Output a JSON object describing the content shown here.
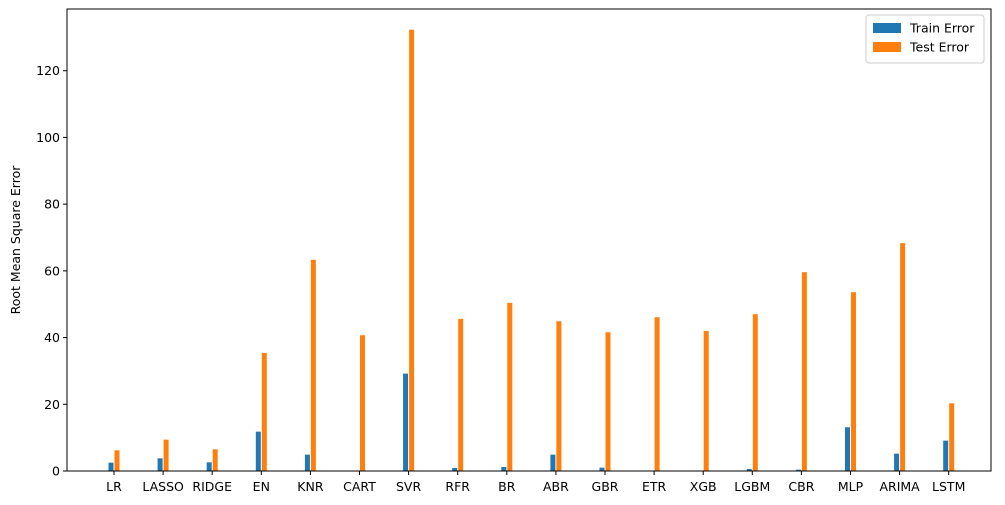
{
  "chart_data": {
    "type": "bar",
    "title": "",
    "xlabel": "",
    "ylabel": "Root Mean Square Error",
    "ylim": [
      0,
      138.5
    ],
    "yticks": [
      0,
      20,
      40,
      60,
      80,
      100,
      120
    ],
    "grid": false,
    "legend_position": "top-right",
    "categories": [
      "LR",
      "LASSO",
      "RIDGE",
      "EN",
      "KNR",
      "CART",
      "SVR",
      "RFR",
      "BR",
      "ABR",
      "GBR",
      "ETR",
      "XGB",
      "LGBM",
      "CBR",
      "MLP",
      "ARIMA",
      "LSTM"
    ],
    "series": [
      {
        "name": "Train Error",
        "color": "#1f77b4",
        "values": [
          2.5,
          3.8,
          2.6,
          11.8,
          4.9,
          0.0,
          29.2,
          0.9,
          1.2,
          4.9,
          1.0,
          0.0,
          0.1,
          0.6,
          0.4,
          13.1,
          5.2,
          9.1
        ]
      },
      {
        "name": "Test Error",
        "color": "#ff7f0e",
        "values": [
          6.2,
          9.4,
          6.5,
          35.4,
          63.3,
          40.7,
          132.3,
          45.6,
          50.4,
          44.9,
          41.6,
          46.1,
          42.0,
          47.0,
          59.6,
          53.6,
          68.3,
          20.3
        ]
      }
    ]
  }
}
